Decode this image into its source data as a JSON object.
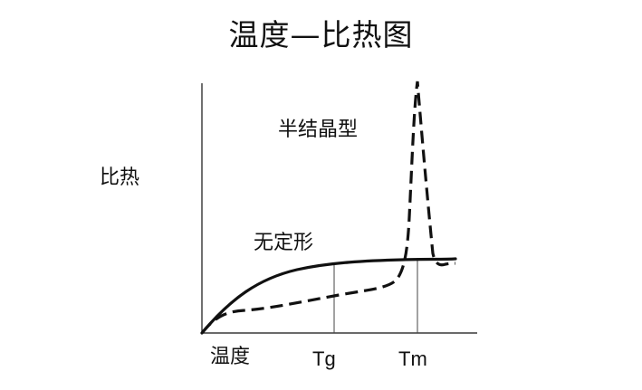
{
  "diagram": {
    "title": "温度—比热图",
    "y_axis_label": "比热",
    "x_axis_label": "温度",
    "markers": [
      {
        "id": "tg",
        "label": "Tg"
      },
      {
        "id": "tm",
        "label": "Tm"
      }
    ],
    "curves": [
      {
        "id": "amorphous",
        "label": "无定形",
        "style": "solid"
      },
      {
        "id": "semicrystalline",
        "label": "半结晶型",
        "style": "dashed"
      }
    ],
    "colors": {
      "line": "#111111",
      "background": "#ffffff"
    }
  }
}
